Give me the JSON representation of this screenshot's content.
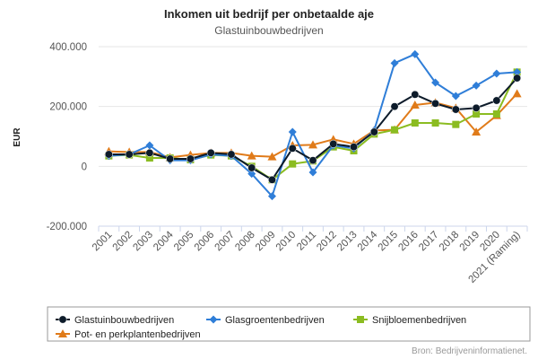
{
  "chart_data": {
    "type": "line",
    "title": "Inkomen uit bedrijf per onbetaalde aje",
    "subtitle": "Glastuinbouwbedrijven",
    "xlabel": "",
    "ylabel": "EUR",
    "ylim": [
      -200000,
      400000
    ],
    "yticks": [
      {
        "value": -200000,
        "label": "-200.000"
      },
      {
        "value": 0,
        "label": "0"
      },
      {
        "value": 200000,
        "label": "200.000"
      },
      {
        "value": 400000,
        "label": "400.000"
      }
    ],
    "grid": true,
    "legend_position": "bottom",
    "categories": [
      "2001",
      "2002",
      "2003",
      "2004",
      "2005",
      "2006",
      "2007",
      "2008",
      "2009",
      "2010",
      "2011",
      "2012",
      "2013",
      "2014",
      "2015",
      "2016",
      "2017",
      "2018",
      "2019",
      "2020",
      "2021 (Raming)"
    ],
    "series": [
      {
        "name": "Glastuinbouwbedrijven",
        "color": "#0d1b2a",
        "marker": "circle",
        "values": [
          40000,
          40000,
          45000,
          25000,
          25000,
          45000,
          40000,
          -5000,
          -45000,
          60000,
          20000,
          75000,
          65000,
          115000,
          200000,
          240000,
          210000,
          190000,
          195000,
          220000,
          295000
        ]
      },
      {
        "name": "Glasgroentenbedrijven",
        "color": "#2f7ed8",
        "marker": "diamond",
        "values": [
          35000,
          40000,
          70000,
          20000,
          20000,
          40000,
          35000,
          -25000,
          -100000,
          115000,
          -20000,
          70000,
          60000,
          120000,
          345000,
          375000,
          280000,
          235000,
          270000,
          310000,
          315000
        ]
      },
      {
        "name": "Snijbloemenbedrijven",
        "color": "#8bbc21",
        "marker": "square",
        "values": [
          35000,
          38000,
          28000,
          28000,
          22000,
          38000,
          35000,
          0,
          -45000,
          8000,
          18000,
          65000,
          52000,
          108000,
          122000,
          145000,
          145000,
          140000,
          175000,
          175000,
          315000
        ]
      },
      {
        "name": "Pot- en perkplantenbedrijven",
        "color": "#e07b1a",
        "marker": "triangle",
        "values": [
          50000,
          48000,
          48000,
          30000,
          38000,
          45000,
          45000,
          35000,
          32000,
          70000,
          72000,
          90000,
          75000,
          120000,
          122000,
          205000,
          213000,
          195000,
          115000,
          170000,
          243000
        ]
      }
    ]
  },
  "credit": "Bron: Bedrijveninformatienet."
}
